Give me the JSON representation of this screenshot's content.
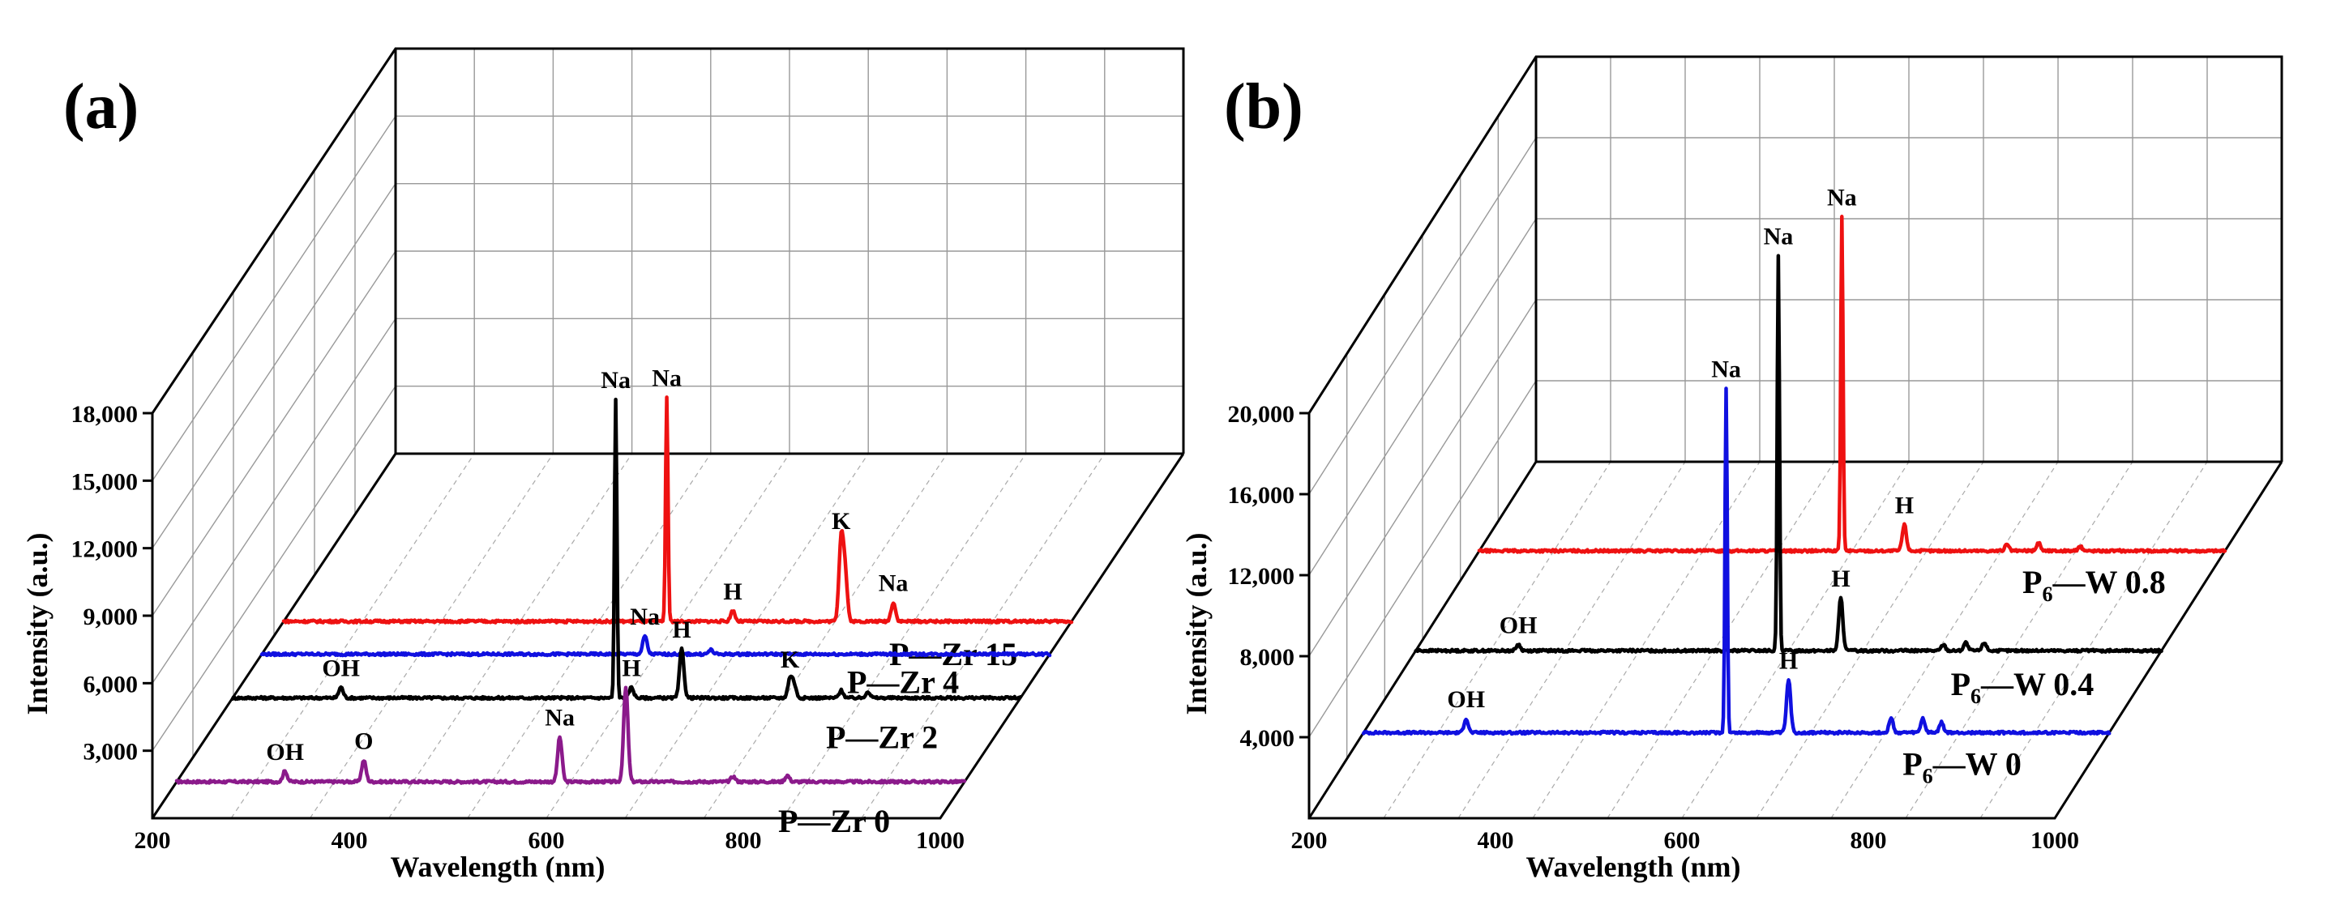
{
  "chart_data": [
    {
      "panel_label": "(a)",
      "type": "line",
      "style": "3d-waterfall",
      "xlabel": "Wavelength (nm)",
      "ylabel": "Intensity (a.u.)",
      "xlim": [
        200,
        1000
      ],
      "x_ticks": [
        "200",
        "400",
        "600",
        "800",
        "1000"
      ],
      "z_ticks": [
        "3,000",
        "6,000",
        "9,000",
        "12,000",
        "15,000",
        "18,000"
      ],
      "series": [
        {
          "name": "P—Zr 0",
          "color": "#8b1a8b",
          "baseline": 3000,
          "peaks": [
            {
              "x": 310,
              "y": 500,
              "label": "OH"
            },
            {
              "x": 390,
              "y": 1000,
              "label": "O"
            },
            {
              "x": 589,
              "y": 2100,
              "label": "Na"
            },
            {
              "x": 656,
              "y": 4400,
              "label": ""
            },
            {
              "x": 765,
              "y": 250,
              "label": ""
            },
            {
              "x": 820,
              "y": 300,
              "label": ""
            }
          ]
        },
        {
          "name": "P—Zr 2",
          "color": "#000000",
          "baseline": 3000,
          "peaks": [
            {
              "x": 310,
              "y": 500,
              "label": "OH"
            },
            {
              "x": 589,
              "y": 14000,
              "label": "Na"
            },
            {
              "x": 605,
              "y": 500,
              "label": "H"
            },
            {
              "x": 656,
              "y": 2300,
              "label": "H"
            },
            {
              "x": 766,
              "y": 900,
              "label": "K"
            },
            {
              "x": 770,
              "y": 600,
              "label": ""
            },
            {
              "x": 818,
              "y": 350,
              "label": ""
            },
            {
              "x": 845,
              "y": 300,
              "label": ""
            }
          ]
        },
        {
          "name": "P—Zr 4",
          "color": "#1010e0",
          "baseline": 3000,
          "peaks": [
            {
              "x": 589,
              "y": 850,
              "label": "Na"
            },
            {
              "x": 656,
              "y": 200,
              "label": ""
            }
          ]
        },
        {
          "name": "P—Zr 15",
          "color": "#ee1111",
          "baseline": 3000,
          "peaks": [
            {
              "x": 589,
              "y": 10500,
              "label": "Na"
            },
            {
              "x": 656,
              "y": 500,
              "label": "H"
            },
            {
              "x": 766,
              "y": 3800,
              "label": "K"
            },
            {
              "x": 770,
              "y": 2200,
              "label": ""
            },
            {
              "x": 819,
              "y": 900,
              "label": "Na"
            }
          ]
        }
      ]
    },
    {
      "panel_label": "(b)",
      "type": "line",
      "style": "3d-waterfall",
      "xlabel": "Wavelength (nm)",
      "ylabel": "Intensity (a.u.)",
      "xlim": [
        200,
        1000
      ],
      "x_ticks": [
        "200",
        "400",
        "600",
        "800",
        "1000"
      ],
      "z_ticks": [
        "4,000",
        "8,000",
        "12,000",
        "16,000",
        "20,000"
      ],
      "series": [
        {
          "name": "P",
          "name_sub": "6",
          "name_rest": "—W 0",
          "color": "#1010e0",
          "baseline": 4000,
          "peaks": [
            {
              "x": 310,
              "y": 700,
              "label": "OH"
            },
            {
              "x": 589,
              "y": 17000,
              "label": "Na"
            },
            {
              "x": 656,
              "y": 2600,
              "label": "H"
            },
            {
              "x": 766,
              "y": 700,
              "label": ""
            },
            {
              "x": 800,
              "y": 700,
              "label": ""
            },
            {
              "x": 820,
              "y": 500,
              "label": ""
            }
          ]
        },
        {
          "name": "P",
          "name_sub": "6",
          "name_rest": "—W 0.4",
          "color": "#000000",
          "baseline": 4000,
          "peaks": [
            {
              "x": 310,
              "y": 300,
              "label": "OH"
            },
            {
              "x": 589,
              "y": 19500,
              "label": "Na"
            },
            {
              "x": 656,
              "y": 2600,
              "label": "H"
            },
            {
              "x": 766,
              "y": 300,
              "label": ""
            },
            {
              "x": 790,
              "y": 400,
              "label": ""
            },
            {
              "x": 810,
              "y": 400,
              "label": ""
            }
          ]
        },
        {
          "name": "P",
          "name_sub": "6",
          "name_rest": "—W 0.8",
          "color": "#ee1111",
          "baseline": 4000,
          "peaks": [
            {
              "x": 589,
              "y": 16500,
              "label": "Na"
            },
            {
              "x": 656,
              "y": 1300,
              "label": "H"
            },
            {
              "x": 766,
              "y": 300,
              "label": ""
            },
            {
              "x": 800,
              "y": 400,
              "label": ""
            },
            {
              "x": 845,
              "y": 200,
              "label": ""
            }
          ]
        }
      ]
    }
  ]
}
